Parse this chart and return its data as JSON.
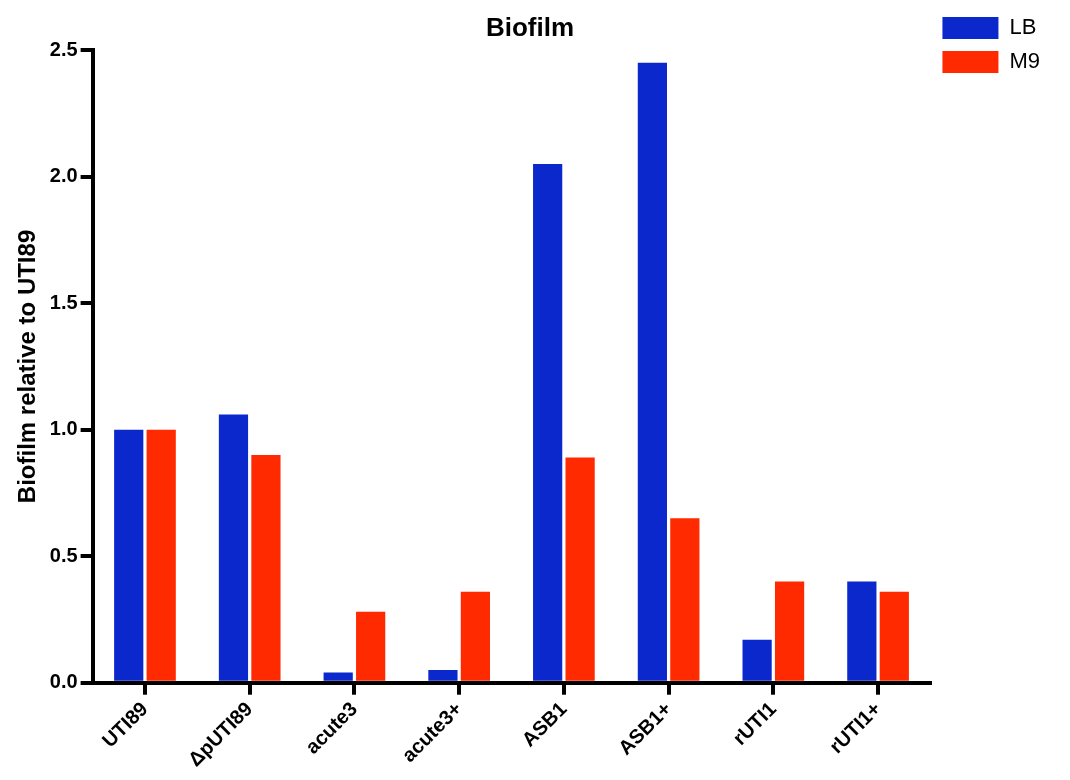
{
  "chart_data": {
    "type": "bar",
    "title": "Biofilm",
    "ylabel": "Biofilm relative to UTI89",
    "categories": [
      "UTI89",
      "ΔpUTI89",
      "acute3",
      "acute3+",
      "ASB1",
      "ASB1+",
      "rUTI1",
      "rUTI1+"
    ],
    "series": [
      {
        "name": "LB",
        "color": "#0a28cc",
        "values": [
          1.0,
          1.06,
          0.04,
          0.05,
          2.05,
          2.45,
          0.17,
          0.4
        ]
      },
      {
        "name": "M9",
        "color": "#ff2a00",
        "values": [
          1.0,
          0.9,
          0.28,
          0.36,
          0.89,
          0.65,
          0.4,
          0.36
        ]
      }
    ],
    "ylim": [
      0,
      2.5
    ],
    "yticks": [
      {
        "value": 0,
        "label": "0.0"
      },
      {
        "value": 0.5,
        "label": "0.5"
      },
      {
        "value": 1,
        "label": "1.0"
      },
      {
        "value": 1.5,
        "label": "1.5"
      },
      {
        "value": 2,
        "label": "2.0"
      },
      {
        "value": 2.5,
        "label": "2.5"
      }
    ],
    "grid": false,
    "legend": "top right"
  }
}
